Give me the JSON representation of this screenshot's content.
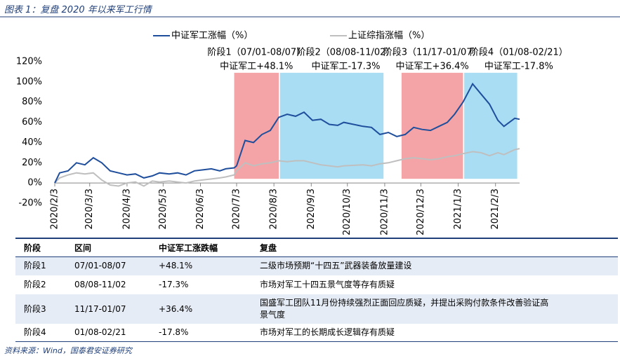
{
  "title": "图表 1：复盘 2020 年以来军工行情",
  "chart_data": {
    "type": "line",
    "x": [
      "2020/2/3",
      "2020/2/7",
      "2020/2/14",
      "2020/2/21",
      "2020/2/28",
      "2020/3/6",
      "2020/3/13",
      "2020/3/20",
      "2020/3/27",
      "2020/4/3",
      "2020/4/10",
      "2020/4/17",
      "2020/4/24",
      "2020/4/30",
      "2020/5/8",
      "2020/5/15",
      "2020/5/22",
      "2020/5/29",
      "2020/6/5",
      "2020/6/12",
      "2020/6/19",
      "2020/6/24",
      "2020/7/1",
      "2020/7/3",
      "2020/7/10",
      "2020/7/17",
      "2020/7/24",
      "2020/7/31",
      "2020/8/7",
      "2020/8/14",
      "2020/8/21",
      "2020/8/28",
      "2020/9/4",
      "2020/9/11",
      "2020/9/18",
      "2020/9/25",
      "2020/9/30",
      "2020/10/16",
      "2020/10/23",
      "2020/10/30",
      "2020/11/6",
      "2020/11/13",
      "2020/11/20",
      "2020/11/27",
      "2020/12/4",
      "2020/12/11",
      "2020/12/18",
      "2020/12/25",
      "2020/12/31",
      "2021/1/7",
      "2021/1/15",
      "2021/1/22",
      "2021/1/29",
      "2021/2/5",
      "2021/2/10",
      "2021/2/19",
      "2021/2/23"
    ],
    "series": [
      {
        "name": "中证军工涨幅（%）",
        "color": "#1f4e9c",
        "values": [
          0,
          10,
          12,
          20,
          18,
          25,
          20,
          12,
          10,
          8,
          9,
          5,
          7,
          10,
          9,
          10,
          8,
          12,
          13,
          14,
          12,
          14,
          15,
          17,
          42,
          40,
          48,
          52,
          65,
          68,
          66,
          70,
          62,
          63,
          58,
          57,
          60,
          56,
          55,
          48,
          50,
          46,
          48,
          55,
          53,
          52,
          56,
          60,
          68,
          80,
          98,
          88,
          78,
          62,
          56,
          64,
          63
        ]
      },
      {
        "name": "上证综指涨幅（%）",
        "color": "#bfbfbf",
        "values": [
          0,
          5,
          8,
          10,
          9,
          10,
          3,
          -2,
          -3,
          0,
          1,
          -3,
          2,
          1,
          2,
          1,
          0,
          2,
          3,
          4,
          5,
          6,
          8,
          12,
          20,
          17,
          19,
          20,
          22,
          21,
          22,
          22,
          20,
          18,
          17,
          16,
          17,
          18,
          17,
          19,
          20,
          22,
          24,
          25,
          24,
          23,
          24,
          26,
          27,
          29,
          31,
          30,
          27,
          30,
          28,
          33,
          34
        ]
      }
    ],
    "xlim": [
      "2020/2/3",
      "2021/2/23"
    ],
    "xticks": [
      "2020/2/3",
      "2020/3/3",
      "2020/4/3",
      "2020/5/3",
      "2020/6/3",
      "2020/7/3",
      "2020/8/3",
      "2020/9/3",
      "2020/10/3",
      "2020/11/3",
      "2020/12/3",
      "2021/1/3",
      "2021/2/3"
    ],
    "ylim": [
      -20,
      120
    ],
    "yticks": [
      {
        "value": -20,
        "label": "-20%"
      },
      {
        "value": 0,
        "label": "0%"
      },
      {
        "value": 20,
        "label": "20%"
      },
      {
        "value": 40,
        "label": "40%"
      },
      {
        "value": 60,
        "label": "60%"
      },
      {
        "value": 80,
        "label": "80%"
      },
      {
        "value": 100,
        "label": "100%"
      },
      {
        "value": 120,
        "label": "120%"
      }
    ],
    "annotations": [
      {
        "label": "阶段1（07/01-08/07）",
        "sublabel": "中证军工+48.1%",
        "start": "2020/7/1",
        "end": "2020/8/7",
        "color": "#f4a4a6",
        "text_color": "#e8292e"
      },
      {
        "label": "阶段2（08/08-11/02）",
        "sublabel": "中证军工-17.3%",
        "start": "2020/8/8",
        "end": "2020/11/2",
        "color": "#a9ddf3",
        "text_color": "#1e6fb5"
      },
      {
        "label": "阶段3（11/17-01/07）",
        "sublabel": "中证军工+36.4%",
        "start": "2020/11/17",
        "end": "2021/1/7",
        "color": "#f4a4a6",
        "text_color": "#e8292e"
      },
      {
        "label": "阶段4（01/08-02/21）",
        "sublabel": "中证军工-17.8%",
        "start": "2021/1/8",
        "end": "2021/2/21",
        "color": "#a9ddf3",
        "text_color": "#1e6fb5"
      }
    ]
  },
  "table": {
    "header": [
      "阶段",
      "区间",
      "中证军工涨跌幅",
      "复盘"
    ],
    "rows": [
      [
        "阶段1",
        "07/01-08/07",
        "+48.1%",
        "二级市场预期“十四五”武器装备放量建设"
      ],
      [
        "阶段2",
        "08/08-11/02",
        "-17.3%",
        "市场对军工十四五景气度等存有质疑"
      ],
      [
        "阶段3",
        "11/17-01/07",
        "+36.4%",
        "国盛军工团队11月份持续强烈正面回应质疑，并提出采购付款条件改善验证高景气度"
      ],
      [
        "阶段4",
        "01/08-02/21",
        "-17.8%",
        "市场对军工的长期成长逻辑存有质疑"
      ]
    ]
  },
  "source": "资料来源：Wind，国泰君安证券研究"
}
